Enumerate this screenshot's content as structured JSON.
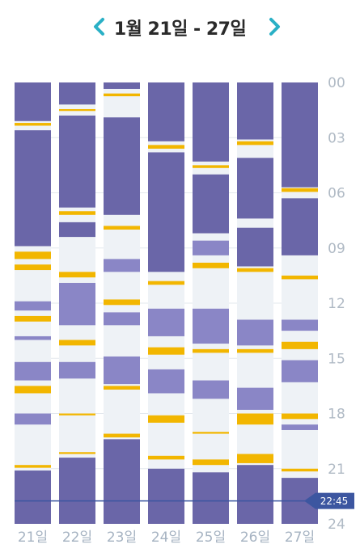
{
  "header": {
    "title": "1월 21일 - 27일",
    "prev_icon": "chevron-left-icon",
    "next_icon": "chevron-right-icon"
  },
  "colors": {
    "deep_sleep": "#6a66a8",
    "light_sleep": "#8a86c6",
    "awake": "#eef2f6",
    "feeding": "#f2b600",
    "accent": "#2ab0c6",
    "now_line": "#3c56a0"
  },
  "chart_data": {
    "type": "timeline",
    "y_axis": {
      "ticks": [
        "00",
        "03",
        "06",
        "09",
        "12",
        "15",
        "18",
        "21",
        "24"
      ],
      "range_hours": [
        0,
        24
      ]
    },
    "current_time": {
      "label": "22:45",
      "hour": 22.75
    },
    "days": [
      {
        "label": "21일",
        "segments": [
          {
            "s": 0,
            "e": 2.1,
            "t": "deep"
          },
          {
            "s": 2.2,
            "e": 2.35,
            "t": "feed"
          },
          {
            "s": 2.6,
            "e": 8.9,
            "t": "deep"
          },
          {
            "s": 9.2,
            "e": 9.6,
            "t": "feed"
          },
          {
            "s": 9.9,
            "e": 10.2,
            "t": "feed"
          },
          {
            "s": 11.9,
            "e": 12.4,
            "t": "light"
          },
          {
            "s": 12.7,
            "e": 13.0,
            "t": "feed"
          },
          {
            "s": 13.8,
            "e": 14.0,
            "t": "light"
          },
          {
            "s": 15.2,
            "e": 16.2,
            "t": "light"
          },
          {
            "s": 16.5,
            "e": 16.9,
            "t": "feed"
          },
          {
            "s": 18.0,
            "e": 18.6,
            "t": "light"
          },
          {
            "s": 20.8,
            "e": 20.95,
            "t": "feed"
          },
          {
            "s": 21.1,
            "e": 24,
            "t": "deep"
          }
        ]
      },
      {
        "label": "22일",
        "segments": [
          {
            "s": 0,
            "e": 1.2,
            "t": "deep"
          },
          {
            "s": 1.45,
            "e": 1.55,
            "t": "feed"
          },
          {
            "s": 1.8,
            "e": 6.8,
            "t": "deep"
          },
          {
            "s": 7.0,
            "e": 7.2,
            "t": "feed"
          },
          {
            "s": 7.6,
            "e": 8.4,
            "t": "deep"
          },
          {
            "s": 10.3,
            "e": 10.6,
            "t": "feed"
          },
          {
            "s": 10.9,
            "e": 13.2,
            "t": "light"
          },
          {
            "s": 14.0,
            "e": 14.3,
            "t": "feed"
          },
          {
            "s": 15.2,
            "e": 16.1,
            "t": "light"
          },
          {
            "s": 18.0,
            "e": 18.1,
            "t": "feed"
          },
          {
            "s": 20.1,
            "e": 20.2,
            "t": "feed"
          },
          {
            "s": 20.4,
            "e": 24,
            "t": "deep"
          }
        ]
      },
      {
        "label": "23일",
        "segments": [
          {
            "s": 0,
            "e": 0.35,
            "t": "deep"
          },
          {
            "s": 0.6,
            "e": 0.75,
            "t": "feed"
          },
          {
            "s": 1.9,
            "e": 7.2,
            "t": "deep"
          },
          {
            "s": 7.8,
            "e": 8.0,
            "t": "feed"
          },
          {
            "s": 9.6,
            "e": 10.3,
            "t": "light"
          },
          {
            "s": 11.8,
            "e": 12.1,
            "t": "feed"
          },
          {
            "s": 12.5,
            "e": 13.2,
            "t": "light"
          },
          {
            "s": 14.9,
            "e": 16.4,
            "t": "light"
          },
          {
            "s": 16.5,
            "e": 16.7,
            "t": "feed"
          },
          {
            "s": 19.1,
            "e": 19.3,
            "t": "feed"
          },
          {
            "s": 19.4,
            "e": 24,
            "t": "deep"
          }
        ]
      },
      {
        "label": "24일",
        "segments": [
          {
            "s": 0,
            "e": 3.2,
            "t": "deep"
          },
          {
            "s": 3.4,
            "e": 3.6,
            "t": "feed"
          },
          {
            "s": 3.8,
            "e": 10.3,
            "t": "deep"
          },
          {
            "s": 10.8,
            "e": 11.0,
            "t": "feed"
          },
          {
            "s": 12.3,
            "e": 13.8,
            "t": "light"
          },
          {
            "s": 14.4,
            "e": 14.8,
            "t": "feed"
          },
          {
            "s": 15.6,
            "e": 16.9,
            "t": "light"
          },
          {
            "s": 18.1,
            "e": 18.5,
            "t": "feed"
          },
          {
            "s": 20.3,
            "e": 20.5,
            "t": "feed"
          },
          {
            "s": 21.0,
            "e": 24,
            "t": "deep"
          }
        ]
      },
      {
        "label": "25일",
        "segments": [
          {
            "s": 0,
            "e": 4.3,
            "t": "deep"
          },
          {
            "s": 4.5,
            "e": 4.65,
            "t": "feed"
          },
          {
            "s": 5.0,
            "e": 8.2,
            "t": "deep"
          },
          {
            "s": 8.6,
            "e": 9.4,
            "t": "light"
          },
          {
            "s": 9.8,
            "e": 10.1,
            "t": "feed"
          },
          {
            "s": 12.3,
            "e": 14.2,
            "t": "light"
          },
          {
            "s": 14.5,
            "e": 14.7,
            "t": "feed"
          },
          {
            "s": 16.2,
            "e": 17.2,
            "t": "light"
          },
          {
            "s": 19.0,
            "e": 19.1,
            "t": "feed"
          },
          {
            "s": 20.5,
            "e": 20.8,
            "t": "feed"
          },
          {
            "s": 21.2,
            "e": 24,
            "t": "deep"
          }
        ]
      },
      {
        "label": "26일",
        "segments": [
          {
            "s": 0,
            "e": 3.1,
            "t": "deep"
          },
          {
            "s": 3.2,
            "e": 3.4,
            "t": "feed"
          },
          {
            "s": 4.1,
            "e": 7.4,
            "t": "deep"
          },
          {
            "s": 7.9,
            "e": 10.0,
            "t": "deep"
          },
          {
            "s": 10.1,
            "e": 10.3,
            "t": "feed"
          },
          {
            "s": 12.9,
            "e": 14.3,
            "t": "light"
          },
          {
            "s": 14.5,
            "e": 14.7,
            "t": "feed"
          },
          {
            "s": 16.6,
            "e": 17.8,
            "t": "light"
          },
          {
            "s": 18.0,
            "e": 18.6,
            "t": "feed"
          },
          {
            "s": 20.2,
            "e": 20.7,
            "t": "feed"
          },
          {
            "s": 20.8,
            "e": 24,
            "t": "deep"
          }
        ]
      },
      {
        "label": "27일",
        "segments": [
          {
            "s": 0,
            "e": 5.7,
            "t": "deep"
          },
          {
            "s": 5.75,
            "e": 5.95,
            "t": "feed"
          },
          {
            "s": 6.3,
            "e": 9.4,
            "t": "deep"
          },
          {
            "s": 10.5,
            "e": 10.7,
            "t": "feed"
          },
          {
            "s": 12.9,
            "e": 13.5,
            "t": "light"
          },
          {
            "s": 14.1,
            "e": 14.5,
            "t": "feed"
          },
          {
            "s": 15.1,
            "e": 16.3,
            "t": "light"
          },
          {
            "s": 18.0,
            "e": 18.3,
            "t": "feed"
          },
          {
            "s": 18.6,
            "e": 18.9,
            "t": "light"
          },
          {
            "s": 21.0,
            "e": 21.15,
            "t": "feed"
          },
          {
            "s": 21.5,
            "e": 24,
            "t": "deep"
          }
        ]
      }
    ]
  }
}
